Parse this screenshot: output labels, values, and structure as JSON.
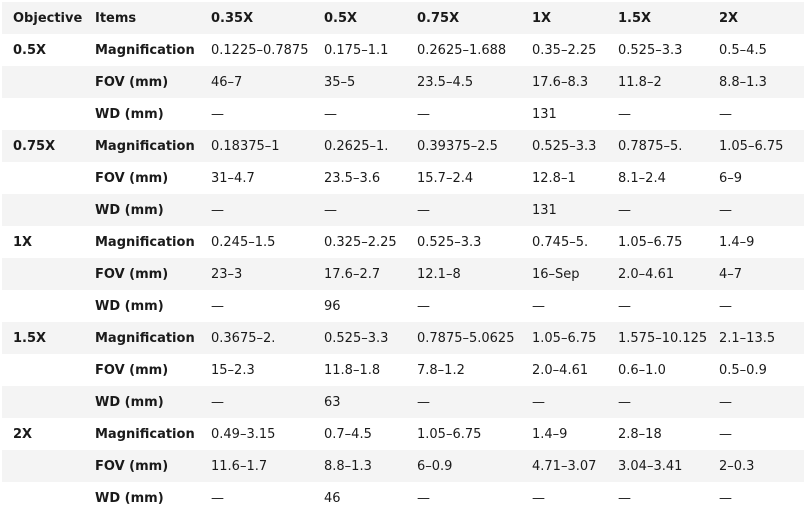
{
  "table": {
    "headers": [
      "Objective",
      "Items",
      "0.35X",
      "0.5X",
      "0.75X",
      "1X",
      "1.5X",
      "2X"
    ],
    "rows": [
      {
        "objective": "0.5X",
        "item": "Magnification",
        "values": [
          "0.1225–0.7875",
          "0.175–1.1",
          "0.2625–1.688",
          "0.35–2.25",
          "0.525–3.3",
          "0.5–4.5"
        ]
      },
      {
        "objective": "",
        "item": "FOV (mm)",
        "values": [
          "46–7",
          "35–5",
          "23.5–4.5",
          "17.6–8.3",
          "11.8–2",
          "8.8–1.3"
        ]
      },
      {
        "objective": "",
        "item": "WD (mm)",
        "values": [
          "—",
          "—",
          "—",
          "131",
          "—",
          "—"
        ]
      },
      {
        "objective": "0.75X",
        "item": "Magnification",
        "values": [
          "0.18375–1",
          "0.2625–1.",
          "0.39375–2.5",
          "0.525–3.3",
          "0.7875–5.",
          "1.05–6.75"
        ]
      },
      {
        "objective": "",
        "item": "FOV (mm)",
        "values": [
          "31–4.7",
          "23.5–3.6",
          "15.7–2.4",
          "12.8–1",
          "8.1–2.4",
          "6–9"
        ]
      },
      {
        "objective": "",
        "item": "WD (mm)",
        "values": [
          "—",
          "—",
          "—",
          "131",
          "—",
          "—"
        ]
      },
      {
        "objective": "1X",
        "item": "Magnification",
        "values": [
          "0.245–1.5",
          "0.325–2.25",
          "0.525–3.3",
          "0.745–5.",
          "1.05–6.75",
          "1.4–9"
        ]
      },
      {
        "objective": "",
        "item": "FOV (mm)",
        "values": [
          "23–3",
          "17.6–2.7",
          "12.1–8",
          "16–Sep",
          "2.0–4.61",
          "4–7"
        ]
      },
      {
        "objective": "",
        "item": "WD (mm)",
        "values": [
          "—",
          "96",
          "—",
          "—",
          "—",
          "—"
        ]
      },
      {
        "objective": "1.5X",
        "item": "Magnification",
        "values": [
          "0.3675–2.",
          "0.525–3.3",
          "0.7875–5.0625",
          "1.05–6.75",
          "1.575–10.125",
          "2.1–13.5"
        ]
      },
      {
        "objective": "",
        "item": "FOV (mm)",
        "values": [
          "15–2.3",
          "11.8–1.8",
          "7.8–1.2",
          "2.0–4.61",
          "0.6–1.0",
          "0.5–0.9"
        ]
      },
      {
        "objective": "",
        "item": "WD (mm)",
        "values": [
          "—",
          "63",
          "—",
          "—",
          "—",
          "—"
        ]
      },
      {
        "objective": "2X",
        "item": "Magnification",
        "values": [
          "0.49–3.15",
          "0.7–4.5",
          "1.05–6.75",
          "1.4–9",
          "2.8–18",
          "—"
        ]
      },
      {
        "objective": "",
        "item": "FOV (mm)",
        "values": [
          "11.6–1.7",
          "8.8–1.3",
          "6–0.9",
          "4.71–3.07",
          "3.04–3.41",
          "2–0.3"
        ]
      },
      {
        "objective": "",
        "item": "WD (mm)",
        "values": [
          "—",
          "46",
          "—",
          "—",
          "—",
          "—"
        ]
      }
    ]
  }
}
